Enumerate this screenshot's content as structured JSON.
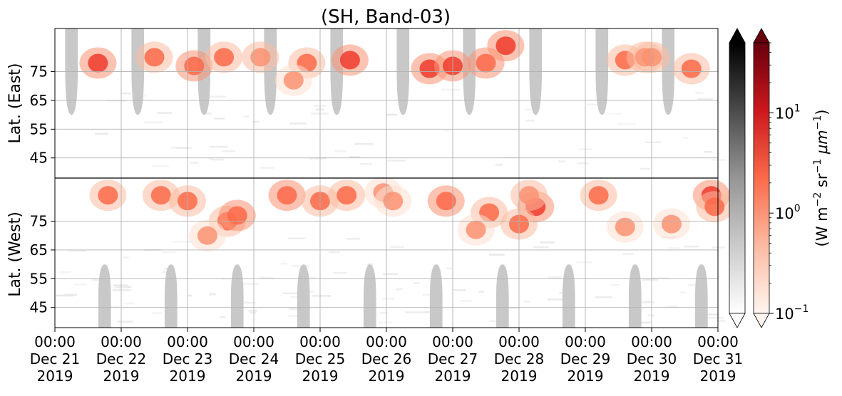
{
  "chart_data": {
    "type": "heatmap",
    "title": "(SH, Band-03)",
    "xlabel": "",
    "x_ticks": [
      {
        "time": "00:00",
        "date": "Dec 21",
        "year": "2019"
      },
      {
        "time": "00:00",
        "date": "Dec 22",
        "year": "2019"
      },
      {
        "time": "00:00",
        "date": "Dec 23",
        "year": "2019"
      },
      {
        "time": "00:00",
        "date": "Dec 24",
        "year": "2019"
      },
      {
        "time": "00:00",
        "date": "Dec 25",
        "year": "2019"
      },
      {
        "time": "00:00",
        "date": "Dec 26",
        "year": "2019"
      },
      {
        "time": "00:00",
        "date": "Dec 27",
        "year": "2019"
      },
      {
        "time": "00:00",
        "date": "Dec 28",
        "year": "2019"
      },
      {
        "time": "00:00",
        "date": "Dec 29",
        "year": "2019"
      },
      {
        "time": "00:00",
        "date": "Dec 30",
        "year": "2019"
      },
      {
        "time": "00:00",
        "date": "Dec 31",
        "year": "2019"
      }
    ],
    "xlim_days": [
      0,
      10
    ],
    "upper_panel": {
      "ylabel": "Lat. (East)",
      "ticks": [
        "45",
        "55",
        "65",
        "75"
      ],
      "ylim": [
        38,
        90
      ]
    },
    "lower_panel": {
      "ylabel": "Lat. (West)",
      "ticks": [
        "75",
        "65",
        "55",
        "45"
      ],
      "ylim": [
        90,
        38
      ]
    },
    "daylight_mask_color": "#c8c8c8",
    "daylight_centers_days_east": [
      0.25,
      1.25,
      2.25,
      3.25,
      4.25,
      5.25,
      6.25,
      7.25,
      8.25,
      9.25
    ],
    "daylight_centers_days_west": [
      0.75,
      1.75,
      2.75,
      3.75,
      4.75,
      5.75,
      6.75,
      7.75,
      8.75,
      9.75
    ],
    "daylight_edge_lat": 60,
    "emission_blobs": [
      {
        "day": 0.65,
        "lat": 78,
        "hemi": "east",
        "v": 4
      },
      {
        "day": 0.8,
        "lat": 84,
        "hemi": "west",
        "v": 2
      },
      {
        "day": 1.5,
        "lat": 80,
        "hemi": "east",
        "v": 2
      },
      {
        "day": 1.6,
        "lat": 84,
        "hemi": "west",
        "v": 2
      },
      {
        "day": 2.1,
        "lat": 77,
        "hemi": "east",
        "v": 3
      },
      {
        "day": 2.0,
        "lat": 82,
        "hemi": "west",
        "v": 2
      },
      {
        "day": 2.55,
        "lat": 80,
        "hemi": "east",
        "v": 2
      },
      {
        "day": 2.6,
        "lat": 75,
        "hemi": "west",
        "v": 2
      },
      {
        "day": 2.3,
        "lat": 70,
        "hemi": "west",
        "v": 1
      },
      {
        "day": 2.75,
        "lat": 77,
        "hemi": "west",
        "v": 3
      },
      {
        "day": 3.1,
        "lat": 80,
        "hemi": "east",
        "v": 1.5
      },
      {
        "day": 3.5,
        "lat": 84,
        "hemi": "west",
        "v": 3
      },
      {
        "day": 3.8,
        "lat": 78,
        "hemi": "east",
        "v": 2
      },
      {
        "day": 4.0,
        "lat": 82,
        "hemi": "west",
        "v": 2
      },
      {
        "day": 3.6,
        "lat": 72,
        "hemi": "east",
        "v": 1
      },
      {
        "day": 4.45,
        "lat": 79,
        "hemi": "east",
        "v": 6
      },
      {
        "day": 4.4,
        "lat": 84,
        "hemi": "west",
        "v": 2
      },
      {
        "day": 4.95,
        "lat": 85,
        "hemi": "west",
        "v": 1.2
      },
      {
        "day": 5.1,
        "lat": 82,
        "hemi": "west",
        "v": 1
      },
      {
        "day": 5.65,
        "lat": 76,
        "hemi": "east",
        "v": 4
      },
      {
        "day": 6.0,
        "lat": 77,
        "hemi": "east",
        "v": 4
      },
      {
        "day": 5.9,
        "lat": 82,
        "hemi": "west",
        "v": 3
      },
      {
        "day": 6.5,
        "lat": 78,
        "hemi": "east",
        "v": 3
      },
      {
        "day": 6.8,
        "lat": 84,
        "hemi": "east",
        "v": 4
      },
      {
        "day": 6.55,
        "lat": 78,
        "hemi": "west",
        "v": 2
      },
      {
        "day": 6.35,
        "lat": 72,
        "hemi": "west",
        "v": 1
      },
      {
        "day": 7.25,
        "lat": 80,
        "hemi": "west",
        "v": 4
      },
      {
        "day": 7.0,
        "lat": 74,
        "hemi": "west",
        "v": 2
      },
      {
        "day": 7.15,
        "lat": 84,
        "hemi": "west",
        "v": 1.5
      },
      {
        "day": 8.2,
        "lat": 84,
        "hemi": "west",
        "v": 2
      },
      {
        "day": 8.6,
        "lat": 79,
        "hemi": "east",
        "v": 2
      },
      {
        "day": 8.9,
        "lat": 80,
        "hemi": "east",
        "v": 2
      },
      {
        "day": 9.0,
        "lat": 80,
        "hemi": "east",
        "v": 1.5
      },
      {
        "day": 9.6,
        "lat": 76,
        "hemi": "east",
        "v": 2
      },
      {
        "day": 9.9,
        "lat": 84,
        "hemi": "west",
        "v": 4
      },
      {
        "day": 9.95,
        "lat": 80,
        "hemi": "west",
        "v": 2
      },
      {
        "day": 9.3,
        "lat": 74,
        "hemi": "west",
        "v": 1
      },
      {
        "day": 8.6,
        "lat": 73,
        "hemi": "west",
        "v": 1
      }
    ],
    "colorbar_gray": {
      "cmap": "Greys",
      "extend": "both"
    },
    "colorbar_red": {
      "cmap": "Reds",
      "extend": "both",
      "scale": "log",
      "range": [
        0.1,
        50
      ],
      "tick_values": [
        0.1,
        1,
        10
      ],
      "tick_labels": [
        {
          "base": "10",
          "exp": "−1"
        },
        {
          "base": "10",
          "exp": "0"
        },
        {
          "base": "10",
          "exp": "1"
        }
      ]
    },
    "colorbar_label": {
      "pre": "(W m",
      "e1": "−2",
      "mid": " sr",
      "e2": "−1",
      "mu": " μm",
      "e3": "−1",
      "post": ")"
    }
  }
}
